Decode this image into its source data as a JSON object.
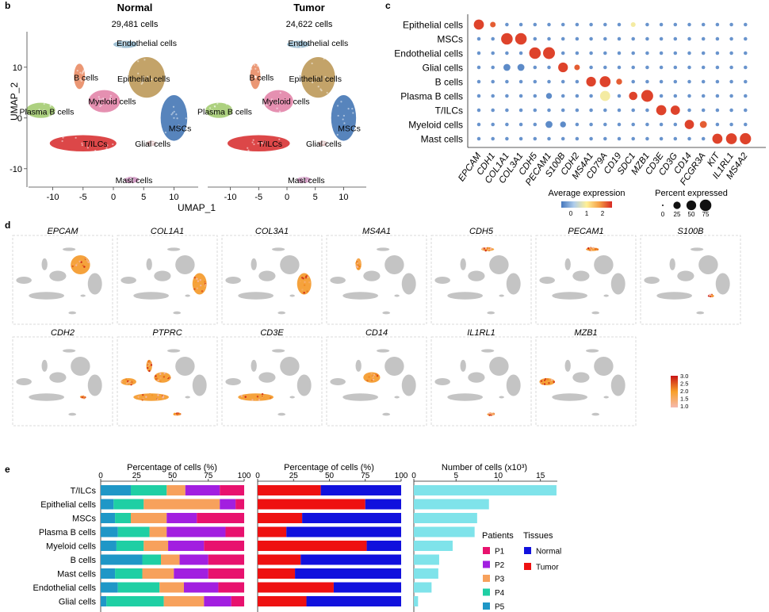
{
  "panel_labels": {
    "b": "b",
    "c": "c",
    "d": "d",
    "e": "e"
  },
  "umap": {
    "ylabel": "UMAP_2",
    "xlabel": "UMAP_1",
    "x_ticks": [
      "-10",
      "-5",
      "0",
      "5",
      "10"
    ],
    "y_ticks": [
      "10",
      "0",
      "-10"
    ],
    "xlim": [
      -14,
      14
    ],
    "ylim": [
      -13,
      17
    ],
    "panels": [
      {
        "title": "Normal",
        "subtitle": "29,481 cells"
      },
      {
        "title": "Tumor",
        "subtitle": "24,622 cells"
      }
    ],
    "clusters": [
      {
        "label": "Endothelial cells",
        "x": 2.0,
        "y": 14.5,
        "rx": 2.0,
        "ry": 0.7,
        "color": "#8fb6cc",
        "lx": 5.5,
        "ly": 14.8
      },
      {
        "label": "B cells",
        "x": -5.6,
        "y": 8.2,
        "rx": 0.9,
        "ry": 2.5,
        "color": "#e8855c",
        "lx": -4.5,
        "ly": 8.0
      },
      {
        "label": "Epithelial cells",
        "x": 5.5,
        "y": 8.0,
        "rx": 3.0,
        "ry": 4.0,
        "color": "#b8934f",
        "lx": 5.0,
        "ly": 7.8
      },
      {
        "label": "Myeloid cells",
        "x": -1.5,
        "y": 3.3,
        "rx": 2.6,
        "ry": 2.2,
        "color": "#e07da3",
        "lx": -0.2,
        "ly": 3.3
      },
      {
        "label": "Plasma B cells",
        "x": -12.0,
        "y": 1.5,
        "rx": 2.4,
        "ry": 1.5,
        "color": "#9fc96a",
        "lx": -11.0,
        "ly": 1.3
      },
      {
        "label": "MSCs",
        "x": 10.0,
        "y": 0.0,
        "rx": 2.2,
        "ry": 4.5,
        "color": "#3a6fb0",
        "lx": 11.0,
        "ly": -2.0
      },
      {
        "label": "T/ILCs",
        "x": -5.0,
        "y": -5.0,
        "rx": 5.5,
        "ry": 1.6,
        "color": "#d62728",
        "lx": -3.0,
        "ly": -5.0
      },
      {
        "label": "Glial cells",
        "x": 6.3,
        "y": -5.0,
        "rx": 0.8,
        "ry": 0.5,
        "color": "#cfa8a8",
        "lx": 6.5,
        "ly": -5.0
      },
      {
        "label": "Mast cells",
        "x": 3.0,
        "y": -12.2,
        "rx": 1.2,
        "ry": 0.6,
        "color": "#c88ab8",
        "lx": 3.4,
        "ly": -12.2
      }
    ]
  },
  "dotplot": {
    "rows": [
      "Epithelial cells",
      "MSCs",
      "Endothelial cells",
      "Glial cells",
      "B cells",
      "Plasma B cells",
      "T/ILCs",
      "Myeloid cells",
      "Mast cells"
    ],
    "genes": [
      "EPCAM",
      "CDH1",
      "COL1A1",
      "COL3A1",
      "CDH5",
      "PECAM1",
      "S100B",
      "CDH2",
      "MS4A1",
      "CD79A",
      "CD19",
      "SDC1",
      "MZB1",
      "CD3E",
      "CD3G",
      "CD14",
      "FCGR3A",
      "KIT",
      "IL1RL1",
      "MS4A2"
    ],
    "highlights": [
      {
        "row": 0,
        "col": 0,
        "expr": 2.4,
        "pct": 55
      },
      {
        "row": 0,
        "col": 1,
        "expr": 2.2,
        "pct": 12
      },
      {
        "row": 0,
        "col": 11,
        "expr": 0.9,
        "pct": 8
      },
      {
        "row": 1,
        "col": 2,
        "expr": 2.4,
        "pct": 75
      },
      {
        "row": 1,
        "col": 3,
        "expr": 2.4,
        "pct": 75
      },
      {
        "row": 2,
        "col": 4,
        "expr": 2.4,
        "pct": 75
      },
      {
        "row": 2,
        "col": 5,
        "expr": 2.4,
        "pct": 80
      },
      {
        "row": 3,
        "col": 2,
        "expr": -0.4,
        "pct": 22
      },
      {
        "row": 3,
        "col": 3,
        "expr": -0.4,
        "pct": 22
      },
      {
        "row": 3,
        "col": 6,
        "expr": 2.4,
        "pct": 50
      },
      {
        "row": 3,
        "col": 7,
        "expr": 2.2,
        "pct": 12
      },
      {
        "row": 4,
        "col": 8,
        "expr": 2.4,
        "pct": 50
      },
      {
        "row": 4,
        "col": 9,
        "expr": 2.4,
        "pct": 65
      },
      {
        "row": 4,
        "col": 10,
        "expr": 2.2,
        "pct": 14
      },
      {
        "row": 5,
        "col": 9,
        "expr": 0.9,
        "pct": 55
      },
      {
        "row": 5,
        "col": 11,
        "expr": 2.4,
        "pct": 35
      },
      {
        "row": 5,
        "col": 12,
        "expr": 2.4,
        "pct": 80
      },
      {
        "row": 5,
        "col": 5,
        "expr": -0.4,
        "pct": 14
      },
      {
        "row": 6,
        "col": 13,
        "expr": 2.4,
        "pct": 55
      },
      {
        "row": 6,
        "col": 14,
        "expr": 2.4,
        "pct": 45
      },
      {
        "row": 7,
        "col": 5,
        "expr": -0.4,
        "pct": 22
      },
      {
        "row": 7,
        "col": 6,
        "expr": -0.4,
        "pct": 14
      },
      {
        "row": 7,
        "col": 15,
        "expr": 2.4,
        "pct": 45
      },
      {
        "row": 7,
        "col": 16,
        "expr": 2.2,
        "pct": 22
      },
      {
        "row": 8,
        "col": 17,
        "expr": 2.4,
        "pct": 55
      },
      {
        "row": 8,
        "col": 18,
        "expr": 2.4,
        "pct": 65
      },
      {
        "row": 8,
        "col": 19,
        "expr": 2.4,
        "pct": 70
      }
    ],
    "background_expr": -0.3,
    "background_pct": 3,
    "color_legend": {
      "title": "Average expression",
      "ticks": [
        "0",
        "1",
        "2"
      ],
      "range": [
        -0.6,
        2.6
      ]
    },
    "size_legend": {
      "title": "Percent expressed",
      "values": [
        "0",
        "25",
        "50",
        "75"
      ]
    }
  },
  "featureplots": {
    "genes": [
      "EPCAM",
      "COL1A1",
      "COL3A1",
      "MS4A1",
      "CDH5",
      "PECAM1",
      "S100B",
      "CDH2",
      "PTPRC",
      "CD3E",
      "CD14",
      "IL1RL1",
      "MZB1"
    ],
    "targets": [
      [
        "Epithelial cells"
      ],
      [
        "MSCs"
      ],
      [
        "MSCs"
      ],
      [
        "B cells"
      ],
      [
        "Endothelial cells"
      ],
      [
        "Endothelial cells"
      ],
      [
        "Glial cells"
      ],
      [
        "Glial cells"
      ],
      [
        "T/ILCs",
        "Myeloid cells",
        "B cells",
        "Plasma B cells",
        "Mast cells"
      ],
      [
        "T/ILCs"
      ],
      [
        "Myeloid cells"
      ],
      [
        "Mast cells"
      ],
      [
        "Plasma B cells"
      ]
    ],
    "colorbar_ticks": [
      "3.0",
      "2.5",
      "2.0",
      "1.5",
      "1.0"
    ]
  },
  "chart_data": [
    {
      "type": "bar",
      "orientation": "horizontal",
      "stacked": true,
      "title": "Percentage of cells (%)",
      "categories": [
        "T/ILCs",
        "Epithelial cells",
        "MSCs",
        "Plasma B cells",
        "Myeloid cells",
        "B cells",
        "Mast cells",
        "Endothelial cells",
        "Glial cells"
      ],
      "xlim": [
        0,
        100
      ],
      "x_ticks": [
        "0",
        "25",
        "50",
        "75",
        "100"
      ],
      "series": [
        {
          "name": "P5",
          "color": "#1f97c7",
          "values": [
            21,
            9,
            10,
            12,
            11,
            29,
            10,
            12,
            4
          ]
        },
        {
          "name": "P4",
          "color": "#1fcfa4",
          "values": [
            25,
            21,
            11,
            22,
            19,
            13,
            19,
            29,
            40
          ]
        },
        {
          "name": "P3",
          "color": "#f7a15c",
          "values": [
            13,
            53,
            25,
            12,
            17,
            13,
            22,
            17,
            28
          ]
        },
        {
          "name": "P2",
          "color": "#a21fe0",
          "values": [
            24,
            11,
            21,
            41,
            25,
            20,
            24,
            24,
            19
          ]
        },
        {
          "name": "P1",
          "color": "#e8126e",
          "values": [
            17,
            6,
            33,
            13,
            28,
            25,
            25,
            18,
            9
          ]
        }
      ]
    },
    {
      "type": "bar",
      "orientation": "horizontal",
      "stacked": true,
      "title": "Percentage of cells (%)",
      "categories": [
        "T/ILCs",
        "Epithelial cells",
        "MSCs",
        "Plasma B cells",
        "Myeloid cells",
        "B cells",
        "Mast cells",
        "Endothelial cells",
        "Glial cells"
      ],
      "xlim": [
        0,
        100
      ],
      "x_ticks": [
        "0",
        "25",
        "50",
        "75",
        "100"
      ],
      "series": [
        {
          "name": "Tumor",
          "color": "#ee1111",
          "values": [
            44,
            75,
            31,
            20,
            76,
            30,
            26,
            53,
            34
          ]
        },
        {
          "name": "Normal",
          "color": "#1111dd",
          "values": [
            56,
            25,
            69,
            80,
            24,
            70,
            74,
            47,
            66
          ]
        }
      ]
    },
    {
      "type": "bar",
      "orientation": "horizontal",
      "title": "Number of cells (x10³)",
      "categories": [
        "T/ILCs",
        "Epithelial cells",
        "MSCs",
        "Plasma B cells",
        "Myeloid cells",
        "B cells",
        "Mast cells",
        "Endothelial cells",
        "Glial cells"
      ],
      "xlim": [
        0,
        17
      ],
      "x_ticks": [
        "0",
        "5",
        "10",
        "15"
      ],
      "color": "#7fe3ea",
      "values": [
        16.9,
        8.9,
        7.5,
        7.2,
        4.6,
        3.0,
        2.9,
        2.1,
        0.5
      ]
    }
  ],
  "legends": {
    "patients": {
      "title": "Patients",
      "items": [
        "P1",
        "P2",
        "P3",
        "P4",
        "P5"
      ],
      "colors": [
        "#e8126e",
        "#a21fe0",
        "#f7a15c",
        "#1fcfa4",
        "#1f97c7"
      ]
    },
    "tissues": {
      "title": "Tissues",
      "items": [
        "Normal",
        "Tumor"
      ],
      "colors": [
        "#1111dd",
        "#ee1111"
      ]
    }
  }
}
